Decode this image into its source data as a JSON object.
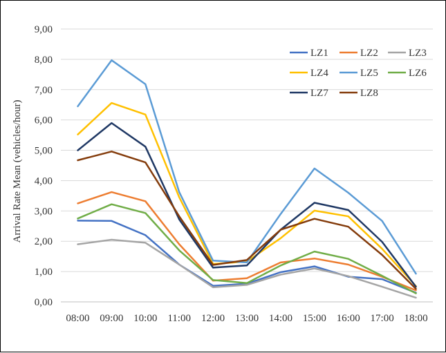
{
  "chart_data": {
    "type": "line",
    "title": "",
    "xlabel": "",
    "ylabel": "Arrival Rate Mean (vehicles/hour)",
    "categories": [
      "08:00",
      "09:00",
      "10:00",
      "11:00",
      "12:00",
      "13:00",
      "14:00",
      "15:00",
      "16:00",
      "17:00",
      "18:00"
    ],
    "ylim": [
      0,
      9
    ],
    "y_ticks": [
      "0,00",
      "1,00",
      "2,00",
      "3,00",
      "4,00",
      "5,00",
      "6,00",
      "7,00",
      "8,00",
      "9,00"
    ],
    "grid": "horizontal",
    "legend_position": "top-right",
    "series": [
      {
        "name": "LZ1",
        "color": "#4472C4",
        "values": [
          2.68,
          2.67,
          2.2,
          1.23,
          0.53,
          0.6,
          0.98,
          1.17,
          0.83,
          0.75,
          0.3
        ]
      },
      {
        "name": "LZ2",
        "color": "#ED7D31",
        "values": [
          3.25,
          3.62,
          3.32,
          1.9,
          0.7,
          0.78,
          1.3,
          1.43,
          1.23,
          0.83,
          0.38
        ]
      },
      {
        "name": "LZ3",
        "color": "#A5A5A5",
        "values": [
          1.9,
          2.05,
          1.95,
          1.23,
          0.48,
          0.56,
          0.9,
          1.1,
          0.85,
          0.5,
          0.14
        ]
      },
      {
        "name": "LZ4",
        "color": "#FFC000",
        "values": [
          5.52,
          6.56,
          6.18,
          3.45,
          1.25,
          1.33,
          2.1,
          3.01,
          2.82,
          1.75,
          0.52
        ]
      },
      {
        "name": "LZ5",
        "color": "#5B9BD5",
        "values": [
          6.45,
          7.97,
          7.18,
          3.62,
          1.36,
          1.3,
          2.9,
          4.4,
          3.6,
          2.67,
          0.93
        ]
      },
      {
        "name": "LZ6",
        "color": "#70AD47",
        "values": [
          2.75,
          3.22,
          2.93,
          1.7,
          0.72,
          0.62,
          1.2,
          1.66,
          1.42,
          0.86,
          0.28
        ]
      },
      {
        "name": "LZ7",
        "color": "#1F3864",
        "values": [
          5.0,
          5.9,
          5.12,
          2.72,
          1.13,
          1.2,
          2.38,
          3.27,
          3.03,
          1.98,
          0.5
        ]
      },
      {
        "name": "LZ8",
        "color": "#843C0C",
        "values": [
          4.67,
          4.96,
          4.6,
          2.82,
          1.22,
          1.38,
          2.38,
          2.74,
          2.48,
          1.55,
          0.43
        ]
      }
    ]
  }
}
